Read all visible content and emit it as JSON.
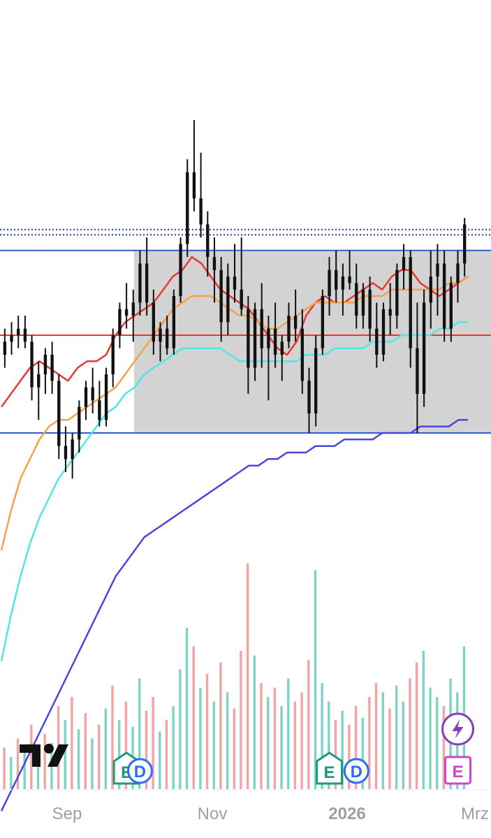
{
  "chart_data": {
    "type": "candlestick",
    "x_axis": {
      "ticks": [
        "Sep",
        "Nov",
        "2026",
        "Mrz"
      ]
    },
    "y_scale_estimate": {
      "note": "price axis not shown; values are relative",
      "min": 0,
      "max": 100
    },
    "range_box": {
      "top": 78,
      "bottom": 50,
      "color": "#d3d3d3"
    },
    "horizontal_lines": [
      {
        "value": 78,
        "color": "#2f5bd8",
        "style": "solid"
      },
      {
        "value": 65,
        "color": "#e23a3a",
        "style": "solid"
      },
      {
        "value": 50,
        "color": "#2f5bd8",
        "style": "solid"
      },
      {
        "value": 81.2,
        "color": "#1f3fa8",
        "style": "dotted"
      },
      {
        "value": 80.4,
        "color": "#1f3fa8",
        "style": "dotted"
      }
    ],
    "moving_averages": [
      {
        "color": "#e53935",
        "values": [
          54,
          56,
          58,
          60,
          61,
          60,
          59,
          58,
          60,
          61,
          61,
          62,
          65,
          67,
          68,
          69,
          70,
          72,
          74,
          75,
          77,
          76,
          74,
          72,
          71,
          70,
          69,
          67,
          65,
          63,
          62,
          64,
          68,
          70,
          71,
          70,
          70,
          71,
          72,
          73,
          72,
          74,
          75,
          75,
          73,
          72,
          71,
          72,
          73,
          74
        ]
      },
      {
        "color": "#f4a24a",
        "values": [
          32,
          38,
          43,
          46,
          49,
          51,
          52,
          52,
          53,
          54,
          55,
          56,
          57,
          59,
          61,
          63,
          65,
          67,
          69,
          70,
          71,
          71,
          71,
          70,
          69,
          68,
          68,
          67,
          66,
          66,
          67,
          68,
          69,
          70,
          70,
          70,
          70,
          70,
          71,
          71,
          71,
          72,
          72,
          72,
          72,
          72,
          72,
          73,
          73,
          74
        ]
      },
      {
        "color": "#4ee6e6",
        "values": [
          15,
          22,
          28,
          33,
          37,
          40,
          43,
          45,
          47,
          49,
          51,
          53,
          54,
          56,
          57,
          59,
          60,
          61,
          62,
          63,
          63,
          63,
          63,
          63,
          62,
          61,
          61,
          61,
          61,
          61,
          61,
          61,
          62,
          62,
          62,
          63,
          63,
          63,
          63,
          64,
          64,
          64,
          65,
          65,
          65,
          65,
          66,
          66,
          67,
          67
        ]
      },
      {
        "color": "#4b46e0",
        "values": [
          -8,
          -5,
          -2,
          1,
          4,
          7,
          10,
          13,
          16,
          19,
          22,
          25,
          28,
          30,
          32,
          34,
          35,
          36,
          37,
          38,
          39,
          40,
          41,
          42,
          43,
          44,
          45,
          45,
          46,
          46,
          47,
          47,
          47,
          48,
          48,
          48,
          49,
          49,
          49,
          49,
          50,
          50,
          50,
          50,
          51,
          51,
          51,
          51,
          52,
          52
        ]
      }
    ],
    "candles": [
      [
        62,
        66,
        60,
        64
      ],
      [
        64,
        67,
        62,
        65
      ],
      [
        65,
        68,
        63,
        66
      ],
      [
        66,
        68,
        63,
        64
      ],
      [
        64,
        65,
        55,
        57
      ],
      [
        57,
        61,
        52,
        59
      ],
      [
        59,
        63,
        56,
        62
      ],
      [
        62,
        64,
        56,
        58
      ],
      [
        58,
        59,
        46,
        48
      ],
      [
        48,
        51,
        44,
        46
      ],
      [
        46,
        50,
        43,
        49
      ],
      [
        49,
        55,
        47,
        54
      ],
      [
        54,
        58,
        52,
        57
      ],
      [
        57,
        60,
        53,
        55
      ],
      [
        55,
        58,
        51,
        52
      ],
      [
        52,
        60,
        51,
        59
      ],
      [
        59,
        66,
        57,
        65
      ],
      [
        65,
        70,
        63,
        69
      ],
      [
        69,
        73,
        66,
        68
      ],
      [
        68,
        72,
        64,
        70
      ],
      [
        70,
        78,
        68,
        76
      ],
      [
        76,
        80,
        68,
        70
      ],
      [
        70,
        72,
        62,
        64
      ],
      [
        64,
        67,
        61,
        66
      ],
      [
        66,
        68,
        62,
        63
      ],
      [
        63,
        72,
        62,
        71
      ],
      [
        71,
        80,
        70,
        79
      ],
      [
        79,
        92,
        77,
        90
      ],
      [
        90,
        98,
        84,
        86
      ],
      [
        86,
        93,
        80,
        82
      ],
      [
        82,
        84,
        74,
        77
      ],
      [
        77,
        80,
        70,
        75
      ],
      [
        75,
        77,
        64,
        67
      ],
      [
        67,
        76,
        65,
        74
      ],
      [
        74,
        79,
        70,
        72
      ],
      [
        72,
        80,
        68,
        69
      ],
      [
        69,
        71,
        56,
        60
      ],
      [
        60,
        70,
        58,
        69
      ],
      [
        69,
        73,
        60,
        63
      ],
      [
        63,
        68,
        55,
        66
      ],
      [
        66,
        70,
        60,
        62
      ],
      [
        62,
        65,
        58,
        64
      ],
      [
        64,
        70,
        63,
        68
      ],
      [
        68,
        72,
        64,
        66
      ],
      [
        66,
        69,
        56,
        58
      ],
      [
        58,
        60,
        50,
        53
      ],
      [
        53,
        65,
        51,
        63
      ],
      [
        63,
        72,
        62,
        71
      ],
      [
        71,
        77,
        68,
        75
      ],
      [
        75,
        78,
        70,
        72
      ],
      [
        72,
        76,
        68,
        74
      ],
      [
        74,
        78,
        72,
        73
      ],
      [
        73,
        76,
        66,
        68
      ],
      [
        68,
        73,
        66,
        72
      ],
      [
        72,
        74,
        64,
        66
      ],
      [
        66,
        70,
        60,
        62
      ],
      [
        62,
        70,
        61,
        69
      ],
      [
        69,
        73,
        65,
        68
      ],
      [
        68,
        76,
        66,
        75
      ],
      [
        75,
        79,
        72,
        77
      ],
      [
        77,
        78,
        60,
        63
      ],
      [
        63,
        70,
        50,
        56
      ],
      [
        56,
        72,
        54,
        70
      ],
      [
        70,
        78,
        66,
        74
      ],
      [
        74,
        79,
        68,
        76
      ],
      [
        76,
        78,
        64,
        66
      ],
      [
        66,
        74,
        64,
        73
      ],
      [
        73,
        78,
        70,
        76
      ],
      [
        76,
        83,
        74,
        82
      ]
    ],
    "volume": [
      {
        "dir": "down",
        "h": 18
      },
      {
        "dir": "up",
        "h": 14
      },
      {
        "dir": "down",
        "h": 22
      },
      {
        "dir": "up",
        "h": 19
      },
      {
        "dir": "down",
        "h": 28
      },
      {
        "dir": "up",
        "h": 16
      },
      {
        "dir": "down",
        "h": 24
      },
      {
        "dir": "up",
        "h": 20
      },
      {
        "dir": "down",
        "h": 36
      },
      {
        "dir": "up",
        "h": 30
      },
      {
        "dir": "down",
        "h": 40
      },
      {
        "dir": "up",
        "h": 26
      },
      {
        "dir": "down",
        "h": 33
      },
      {
        "dir": "up",
        "h": 22
      },
      {
        "dir": "down",
        "h": 28
      },
      {
        "dir": "up",
        "h": 35
      },
      {
        "dir": "down",
        "h": 45
      },
      {
        "dir": "up",
        "h": 30
      },
      {
        "dir": "down",
        "h": 38
      },
      {
        "dir": "up",
        "h": 27
      },
      {
        "dir": "up",
        "h": 48
      },
      {
        "dir": "down",
        "h": 34
      },
      {
        "dir": "down",
        "h": 40
      },
      {
        "dir": "up",
        "h": 25
      },
      {
        "dir": "down",
        "h": 30
      },
      {
        "dir": "up",
        "h": 36
      },
      {
        "dir": "up",
        "h": 52
      },
      {
        "dir": "up",
        "h": 70
      },
      {
        "dir": "down",
        "h": 62
      },
      {
        "dir": "up",
        "h": 44
      },
      {
        "dir": "down",
        "h": 50
      },
      {
        "dir": "up",
        "h": 38
      },
      {
        "dir": "down",
        "h": 55
      },
      {
        "dir": "up",
        "h": 42
      },
      {
        "dir": "down",
        "h": 35
      },
      {
        "dir": "down",
        "h": 60
      },
      {
        "dir": "down",
        "h": 98
      },
      {
        "dir": "up",
        "h": 58
      },
      {
        "dir": "down",
        "h": 46
      },
      {
        "dir": "up",
        "h": 40
      },
      {
        "dir": "down",
        "h": 44
      },
      {
        "dir": "up",
        "h": 36
      },
      {
        "dir": "up",
        "h": 48
      },
      {
        "dir": "down",
        "h": 38
      },
      {
        "dir": "down",
        "h": 42
      },
      {
        "dir": "down",
        "h": 56
      },
      {
        "dir": "up",
        "h": 95
      },
      {
        "dir": "up",
        "h": 46
      },
      {
        "dir": "up",
        "h": 38
      },
      {
        "dir": "down",
        "h": 30
      },
      {
        "dir": "up",
        "h": 34
      },
      {
        "dir": "down",
        "h": 28
      },
      {
        "dir": "down",
        "h": 36
      },
      {
        "dir": "up",
        "h": 31
      },
      {
        "dir": "down",
        "h": 40
      },
      {
        "dir": "down",
        "h": 46
      },
      {
        "dir": "up",
        "h": 42
      },
      {
        "dir": "down",
        "h": 35
      },
      {
        "dir": "up",
        "h": 45
      },
      {
        "dir": "up",
        "h": 38
      },
      {
        "dir": "down",
        "h": 48
      },
      {
        "dir": "down",
        "h": 55
      },
      {
        "dir": "up",
        "h": 60
      },
      {
        "dir": "up",
        "h": 44
      },
      {
        "dir": "up",
        "h": 40
      },
      {
        "dir": "down",
        "h": 36
      },
      {
        "dir": "up",
        "h": 48
      },
      {
        "dir": "up",
        "h": 42
      },
      {
        "dir": "up",
        "h": 62
      }
    ],
    "events": [
      {
        "type": "earnings",
        "label": "E",
        "color": "#1a9a78",
        "x_index": 18
      },
      {
        "type": "dividend",
        "label": "D",
        "color": "#2a6df4",
        "x_index": 20
      },
      {
        "type": "earnings",
        "label": "E",
        "color": "#1a9a78",
        "x_index": 48
      },
      {
        "type": "dividend",
        "label": "D",
        "color": "#2a6df4",
        "x_index": 52
      },
      {
        "type": "earnings-upcoming",
        "label": "E",
        "color": "#cc44cc",
        "x_index": 67
      },
      {
        "type": "flash",
        "label": "⚡",
        "color": "#8a3fb8",
        "x_index": 67
      }
    ],
    "watermark": "TV logo"
  }
}
